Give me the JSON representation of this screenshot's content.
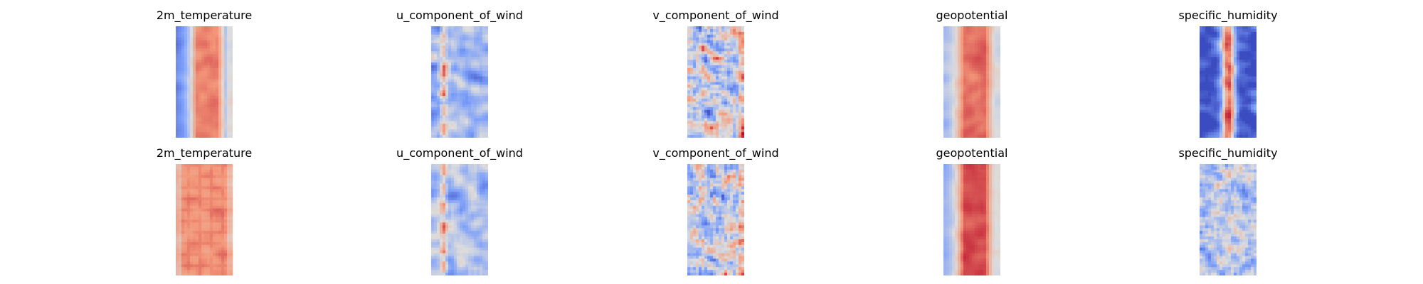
{
  "figure": {
    "colormap": "coolwarm",
    "colors": {
      "cold": "#3b4cc0",
      "neutral": "#dddddd",
      "warm": "#b40426",
      "background": "#ffffff"
    },
    "axes": "off",
    "layout": "2 rows x 5 columns"
  },
  "chart_data": [
    {
      "type": "heatmap",
      "row": 1,
      "title": "2m_temperature",
      "pattern": "warm_core",
      "level": 0.78,
      "edge": 0.15,
      "noise": 0.06,
      "seed": 11
    },
    {
      "type": "heatmap",
      "row": 1,
      "title": "u_component_of_wind",
      "pattern": "streaky",
      "level": 0.35,
      "edge": 0.3,
      "noise": 0.16,
      "seed": 12
    },
    {
      "type": "heatmap",
      "row": 1,
      "title": "v_component_of_wind",
      "pattern": "speckled",
      "level": 0.45,
      "edge": 0.55,
      "noise": 0.28,
      "seed": 13
    },
    {
      "type": "heatmap",
      "row": 1,
      "title": "geopotential",
      "pattern": "warm_core",
      "level": 0.82,
      "edge": 0.35,
      "noise": 0.06,
      "seed": 14
    },
    {
      "type": "heatmap",
      "row": 1,
      "title": "specific_humidity",
      "pattern": "humid_core",
      "level": 0.85,
      "edge": 0.02,
      "noise": 0.14,
      "seed": 15
    },
    {
      "type": "heatmap",
      "row": 2,
      "title": "2m_temperature",
      "pattern": "blocky_warm",
      "level": 0.75,
      "edge": 0.55,
      "noise": 0.06,
      "seed": 21
    },
    {
      "type": "heatmap",
      "row": 2,
      "title": "u_component_of_wind",
      "pattern": "streaky",
      "level": 0.38,
      "edge": 0.35,
      "noise": 0.14,
      "seed": 22
    },
    {
      "type": "heatmap",
      "row": 2,
      "title": "v_component_of_wind",
      "pattern": "speckled",
      "level": 0.45,
      "edge": 0.55,
      "noise": 0.28,
      "seed": 23
    },
    {
      "type": "heatmap",
      "row": 2,
      "title": "geopotential",
      "pattern": "warm_core",
      "level": 0.88,
      "edge": 0.3,
      "noise": 0.05,
      "seed": 24
    },
    {
      "type": "heatmap",
      "row": 2,
      "title": "specific_humidity",
      "pattern": "cool_speckled",
      "level": 0.35,
      "edge": 0.25,
      "noise": 0.2,
      "seed": 25
    }
  ]
}
